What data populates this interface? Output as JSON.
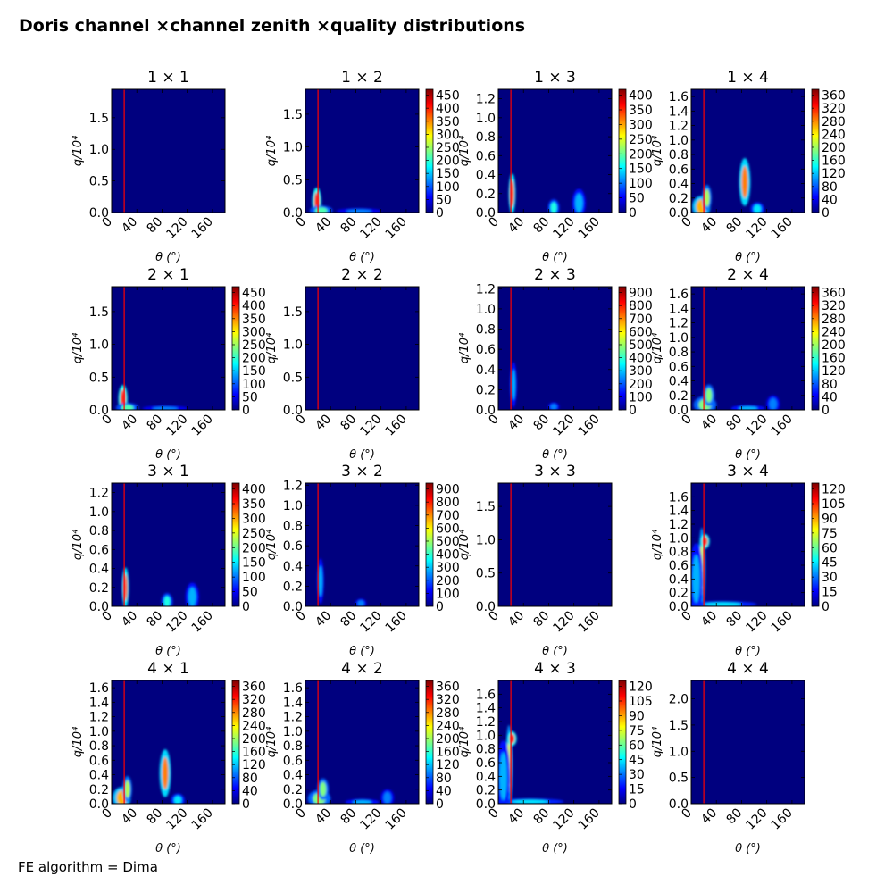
{
  "figure": {
    "title": "Doris channel ×channel zenith ×quality distributions",
    "footnote": "FE algorithm = Dima"
  },
  "colors": {
    "background": "#00007f",
    "marker_line": "#ff0000",
    "colormap": [
      "#00007f",
      "#0000ff",
      "#0080ff",
      "#00ffff",
      "#80ff80",
      "#ffff00",
      "#ff8000",
      "#ff0000",
      "#7f0000"
    ]
  },
  "chart_data": [
    {
      "type": "heatmap",
      "title": "1  × 1",
      "xlabel": "θ (°)",
      "ylabel": "q/10⁴",
      "xlim": [
        0,
        180
      ],
      "ylim": [
        0,
        1.95
      ],
      "x_ticks": [
        "0",
        "40",
        "80",
        "120",
        "160"
      ],
      "y_ticks": [
        "0.0",
        "0.5",
        "1.0",
        "1.5"
      ],
      "colorbar_ticks": [],
      "marker_x": 20,
      "blobs": []
    },
    {
      "type": "heatmap",
      "title": "1  × 2",
      "xlabel": "θ (°)",
      "ylabel": "q/10⁴",
      "xlim": [
        0,
        180
      ],
      "ylim": [
        0,
        1.88
      ],
      "x_ticks": [
        "0",
        "40",
        "80",
        "120",
        "160"
      ],
      "y_ticks": [
        "0.0",
        "0.5",
        "1.0",
        "1.5"
      ],
      "colorbar_ticks": [
        "0",
        "50",
        "100",
        "150",
        "200",
        "250",
        "300",
        "350",
        "400",
        "450"
      ],
      "marker_x": 20,
      "blobs": [
        {
          "x": 18,
          "y": 0.17,
          "w": 4,
          "h": 0.14,
          "v": 0.85
        },
        {
          "x": 25,
          "y": 0.03,
          "w": 10,
          "h": 0.05,
          "v": 0.45
        },
        {
          "x": 85,
          "y": 0.02,
          "w": 20,
          "h": 0.03,
          "v": 0.25
        }
      ]
    },
    {
      "type": "heatmap",
      "title": "1  × 3",
      "xlabel": "θ (°)",
      "ylabel": "q/10⁴",
      "xlim": [
        0,
        180
      ],
      "ylim": [
        0,
        1.3
      ],
      "x_ticks": [
        "0",
        "40",
        "80",
        "120",
        "160"
      ],
      "y_ticks": [
        "0.0",
        "0.2",
        "0.4",
        "0.6",
        "0.8",
        "1.0",
        "1.2"
      ],
      "colorbar_ticks": [
        "0",
        "50",
        "100",
        "150",
        "200",
        "250",
        "300",
        "350",
        "400"
      ],
      "marker_x": 20,
      "blobs": [
        {
          "x": 22,
          "y": 0.2,
          "w": 3,
          "h": 0.14,
          "v": 0.8
        },
        {
          "x": 88,
          "y": 0.05,
          "w": 5,
          "h": 0.06,
          "v": 0.4
        },
        {
          "x": 128,
          "y": 0.1,
          "w": 6,
          "h": 0.1,
          "v": 0.3
        }
      ]
    },
    {
      "type": "heatmap",
      "title": "1  × 4",
      "xlabel": "θ (°)",
      "ylabel": "q/10⁴",
      "xlim": [
        0,
        180
      ],
      "ylim": [
        0,
        1.7
      ],
      "x_ticks": [
        "0",
        "40",
        "80",
        "120",
        "160"
      ],
      "y_ticks": [
        "0.0",
        "0.2",
        "0.4",
        "0.6",
        "0.8",
        "1.0",
        "1.2",
        "1.4",
        "1.6"
      ],
      "colorbar_ticks": [
        "0",
        "40",
        "80",
        "120",
        "160",
        "200",
        "240",
        "280",
        "320",
        "360"
      ],
      "marker_x": 20,
      "blobs": [
        {
          "x": 16,
          "y": 0.08,
          "w": 8,
          "h": 0.1,
          "v": 0.7
        },
        {
          "x": 25,
          "y": 0.2,
          "w": 4,
          "h": 0.12,
          "v": 0.55
        },
        {
          "x": 85,
          "y": 0.42,
          "w": 5,
          "h": 0.22,
          "v": 0.75
        },
        {
          "x": 105,
          "y": 0.05,
          "w": 6,
          "h": 0.06,
          "v": 0.35
        }
      ]
    },
    {
      "type": "heatmap",
      "title": "2  × 1",
      "xlabel": "θ (°)",
      "ylabel": "q/10⁴",
      "xlim": [
        0,
        180
      ],
      "ylim": [
        0,
        1.88
      ],
      "x_ticks": [
        "0",
        "40",
        "80",
        "120",
        "160"
      ],
      "y_ticks": [
        "0.0",
        "0.5",
        "1.0",
        "1.5"
      ],
      "colorbar_ticks": [
        "0",
        "50",
        "100",
        "150",
        "200",
        "250",
        "300",
        "350",
        "400",
        "450"
      ],
      "marker_x": 20,
      "blobs": [
        {
          "x": 18,
          "y": 0.17,
          "w": 4,
          "h": 0.14,
          "v": 0.85
        },
        {
          "x": 25,
          "y": 0.03,
          "w": 10,
          "h": 0.05,
          "v": 0.45
        },
        {
          "x": 85,
          "y": 0.02,
          "w": 20,
          "h": 0.03,
          "v": 0.25
        }
      ]
    },
    {
      "type": "heatmap",
      "title": "2  × 2",
      "xlabel": "θ (°)",
      "ylabel": "q/10⁴",
      "xlim": [
        0,
        180
      ],
      "ylim": [
        0,
        1.88
      ],
      "x_ticks": [
        "0",
        "40",
        "80",
        "120",
        "160"
      ],
      "y_ticks": [
        "0.0",
        "0.5",
        "1.0",
        "1.5"
      ],
      "colorbar_ticks": [],
      "marker_x": 20,
      "blobs": []
    },
    {
      "type": "heatmap",
      "title": "2  × 3",
      "xlabel": "θ (°)",
      "ylabel": "q/10⁴",
      "xlim": [
        0,
        180
      ],
      "ylim": [
        0,
        1.22
      ],
      "x_ticks": [
        "0",
        "40",
        "80",
        "120",
        "160"
      ],
      "y_ticks": [
        "0.0",
        "0.2",
        "0.4",
        "0.6",
        "0.8",
        "1.0",
        "1.2"
      ],
      "colorbar_ticks": [
        "0",
        "100",
        "200",
        "300",
        "400",
        "500",
        "600",
        "700",
        "800",
        "900"
      ],
      "marker_x": 20,
      "blobs": [
        {
          "x": 24,
          "y": 0.25,
          "w": 3,
          "h": 0.15,
          "v": 0.3
        },
        {
          "x": 88,
          "y": 0.03,
          "w": 5,
          "h": 0.03,
          "v": 0.25
        }
      ]
    },
    {
      "type": "heatmap",
      "title": "2  × 4",
      "xlabel": "θ (°)",
      "ylabel": "q/10⁴",
      "xlim": [
        0,
        180
      ],
      "ylim": [
        0,
        1.7
      ],
      "x_ticks": [
        "0",
        "40",
        "80",
        "120",
        "160"
      ],
      "y_ticks": [
        "0.0",
        "0.2",
        "0.4",
        "0.6",
        "0.8",
        "1.0",
        "1.2",
        "1.4",
        "1.6"
      ],
      "colorbar_ticks": [
        "0",
        "40",
        "80",
        "120",
        "160",
        "200",
        "240",
        "280",
        "320",
        "360"
      ],
      "marker_x": 20,
      "blobs": [
        {
          "x": 22,
          "y": 0.07,
          "w": 10,
          "h": 0.08,
          "v": 0.5
        },
        {
          "x": 28,
          "y": 0.2,
          "w": 5,
          "h": 0.1,
          "v": 0.5
        },
        {
          "x": 90,
          "y": 0.02,
          "w": 15,
          "h": 0.03,
          "v": 0.3
        },
        {
          "x": 130,
          "y": 0.08,
          "w": 6,
          "h": 0.08,
          "v": 0.25
        }
      ]
    },
    {
      "type": "heatmap",
      "title": "3  × 1",
      "xlabel": "θ (°)",
      "ylabel": "q/10⁴",
      "xlim": [
        0,
        180
      ],
      "ylim": [
        0,
        1.3
      ],
      "x_ticks": [
        "0",
        "40",
        "80",
        "120",
        "160"
      ],
      "y_ticks": [
        "0.0",
        "0.2",
        "0.4",
        "0.6",
        "0.8",
        "1.0",
        "1.2"
      ],
      "colorbar_ticks": [
        "0",
        "50",
        "100",
        "150",
        "200",
        "250",
        "300",
        "350",
        "400"
      ],
      "marker_x": 20,
      "blobs": [
        {
          "x": 22,
          "y": 0.2,
          "w": 3,
          "h": 0.14,
          "v": 0.8
        },
        {
          "x": 88,
          "y": 0.05,
          "w": 5,
          "h": 0.06,
          "v": 0.4
        },
        {
          "x": 128,
          "y": 0.1,
          "w": 6,
          "h": 0.1,
          "v": 0.3
        }
      ]
    },
    {
      "type": "heatmap",
      "title": "3  × 2",
      "xlabel": "θ (°)",
      "ylabel": "q/10⁴",
      "xlim": [
        0,
        180
      ],
      "ylim": [
        0,
        1.22
      ],
      "x_ticks": [
        "0",
        "40",
        "80",
        "120",
        "160"
      ],
      "y_ticks": [
        "0.0",
        "0.2",
        "0.4",
        "0.6",
        "0.8",
        "1.0",
        "1.2"
      ],
      "colorbar_ticks": [
        "0",
        "100",
        "200",
        "300",
        "400",
        "500",
        "600",
        "700",
        "800",
        "900"
      ],
      "marker_x": 20,
      "blobs": [
        {
          "x": 24,
          "y": 0.25,
          "w": 3,
          "h": 0.15,
          "v": 0.3
        },
        {
          "x": 88,
          "y": 0.03,
          "w": 5,
          "h": 0.03,
          "v": 0.25
        }
      ]
    },
    {
      "type": "heatmap",
      "title": "3  × 3",
      "xlabel": "θ (°)",
      "ylabel": "q/10⁴",
      "xlim": [
        0,
        180
      ],
      "ylim": [
        0,
        1.85
      ],
      "x_ticks": [
        "0",
        "40",
        "80",
        "120",
        "160"
      ],
      "y_ticks": [
        "0.0",
        "0.5",
        "1.0",
        "1.5"
      ],
      "colorbar_ticks": [],
      "marker_x": 20,
      "blobs": []
    },
    {
      "type": "heatmap",
      "title": "3  × 4",
      "xlabel": "θ (°)",
      "ylabel": "q/10⁴",
      "xlim": [
        0,
        180
      ],
      "ylim": [
        0,
        1.8
      ],
      "x_ticks": [
        "0",
        "40",
        "80",
        "120",
        "160"
      ],
      "y_ticks": [
        "0.0",
        "0.2",
        "0.4",
        "0.6",
        "0.8",
        "1.0",
        "1.2",
        "1.4",
        "1.6"
      ],
      "colorbar_ticks": [
        "0",
        "15",
        "30",
        "45",
        "60",
        "75",
        "90",
        "105",
        "120"
      ],
      "marker_x": 20,
      "blobs": [
        {
          "x": 17,
          "y": 0.55,
          "w": 3,
          "h": 0.4,
          "v": 0.6
        },
        {
          "x": 22,
          "y": 0.95,
          "w": 4,
          "h": 0.07,
          "v": 0.85
        },
        {
          "x": 8,
          "y": 0.4,
          "w": 6,
          "h": 0.35,
          "v": 0.3
        },
        {
          "x": 50,
          "y": 0.03,
          "w": 30,
          "h": 0.03,
          "v": 0.35
        }
      ]
    },
    {
      "type": "heatmap",
      "title": "4  × 1",
      "xlabel": "θ (°)",
      "ylabel": "q/10⁴",
      "xlim": [
        0,
        180
      ],
      "ylim": [
        0,
        1.7
      ],
      "x_ticks": [
        "0",
        "40",
        "80",
        "120",
        "160"
      ],
      "y_ticks": [
        "0.0",
        "0.2",
        "0.4",
        "0.6",
        "0.8",
        "1.0",
        "1.2",
        "1.4",
        "1.6"
      ],
      "colorbar_ticks": [
        "0",
        "40",
        "80",
        "120",
        "160",
        "200",
        "240",
        "280",
        "320",
        "360"
      ],
      "marker_x": 20,
      "blobs": [
        {
          "x": 16,
          "y": 0.08,
          "w": 8,
          "h": 0.1,
          "v": 0.7
        },
        {
          "x": 25,
          "y": 0.2,
          "w": 4,
          "h": 0.12,
          "v": 0.55
        },
        {
          "x": 85,
          "y": 0.42,
          "w": 5,
          "h": 0.22,
          "v": 0.75
        },
        {
          "x": 105,
          "y": 0.05,
          "w": 6,
          "h": 0.06,
          "v": 0.35
        }
      ]
    },
    {
      "type": "heatmap",
      "title": "4  × 2",
      "xlabel": "θ (°)",
      "ylabel": "q/10⁴",
      "xlim": [
        0,
        180
      ],
      "ylim": [
        0,
        1.7
      ],
      "x_ticks": [
        "0",
        "40",
        "80",
        "120",
        "160"
      ],
      "y_ticks": [
        "0.0",
        "0.2",
        "0.4",
        "0.6",
        "0.8",
        "1.0",
        "1.2",
        "1.4",
        "1.6"
      ],
      "colorbar_ticks": [
        "0",
        "40",
        "80",
        "120",
        "160",
        "200",
        "240",
        "280",
        "320",
        "360"
      ],
      "marker_x": 20,
      "blobs": [
        {
          "x": 22,
          "y": 0.07,
          "w": 10,
          "h": 0.08,
          "v": 0.5
        },
        {
          "x": 28,
          "y": 0.2,
          "w": 5,
          "h": 0.1,
          "v": 0.5
        },
        {
          "x": 90,
          "y": 0.02,
          "w": 15,
          "h": 0.03,
          "v": 0.3
        },
        {
          "x": 130,
          "y": 0.08,
          "w": 6,
          "h": 0.08,
          "v": 0.25
        }
      ]
    },
    {
      "type": "heatmap",
      "title": "4  × 3",
      "xlabel": "θ (°)",
      "ylabel": "q/10⁴",
      "xlim": [
        0,
        180
      ],
      "ylim": [
        0,
        1.8
      ],
      "x_ticks": [
        "0",
        "40",
        "80",
        "120",
        "160"
      ],
      "y_ticks": [
        "0.0",
        "0.2",
        "0.4",
        "0.6",
        "0.8",
        "1.0",
        "1.2",
        "1.4",
        "1.6"
      ],
      "colorbar_ticks": [
        "0",
        "15",
        "30",
        "45",
        "60",
        "75",
        "90",
        "105",
        "120"
      ],
      "marker_x": 20,
      "blobs": [
        {
          "x": 17,
          "y": 0.55,
          "w": 3,
          "h": 0.4,
          "v": 0.6
        },
        {
          "x": 22,
          "y": 0.95,
          "w": 4,
          "h": 0.07,
          "v": 0.85
        },
        {
          "x": 8,
          "y": 0.4,
          "w": 6,
          "h": 0.35,
          "v": 0.3
        },
        {
          "x": 50,
          "y": 0.03,
          "w": 30,
          "h": 0.03,
          "v": 0.35
        }
      ]
    },
    {
      "type": "heatmap",
      "title": "4  × 4",
      "xlabel": "θ (°)",
      "ylabel": "q/10⁴",
      "xlim": [
        0,
        180
      ],
      "ylim": [
        0,
        2.35
      ],
      "x_ticks": [
        "0",
        "40",
        "80",
        "120",
        "160"
      ],
      "y_ticks": [
        "0.0",
        "0.5",
        "1.0",
        "1.5",
        "2.0"
      ],
      "colorbar_ticks": [],
      "marker_x": 20,
      "blobs": []
    }
  ]
}
